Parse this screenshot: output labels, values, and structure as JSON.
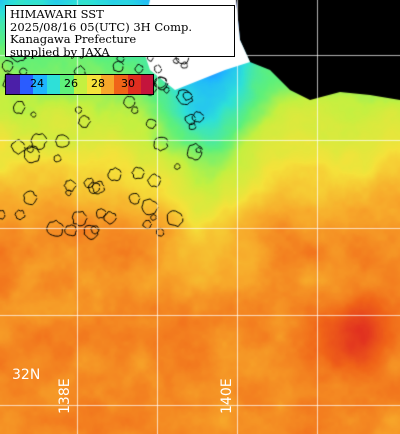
{
  "info": {
    "line1": "HIMAWARI SST",
    "line2": "2025/08/16 05(UTC) 3H Comp.",
    "line3": "Kanagawa Prefecture",
    "line4": "supplied by JAXA"
  },
  "legend": {
    "ticks": [
      "24",
      "26",
      "28",
      "30"
    ],
    "colors": [
      "#4b1fa8",
      "#2a5cff",
      "#1fb4ff",
      "#2ee0d8",
      "#5ef07a",
      "#c4f040",
      "#f5e23a",
      "#f7a72a",
      "#f06418",
      "#e02e20",
      "#c4143c"
    ]
  },
  "grid": {
    "lat_label": "32N",
    "lon_labels": [
      "138E",
      "140E"
    ]
  },
  "palette": {
    "land": "#000000",
    "cloud_mask": "#ffffff",
    "coast": "#000000",
    "grid_line": "#ffffff"
  }
}
